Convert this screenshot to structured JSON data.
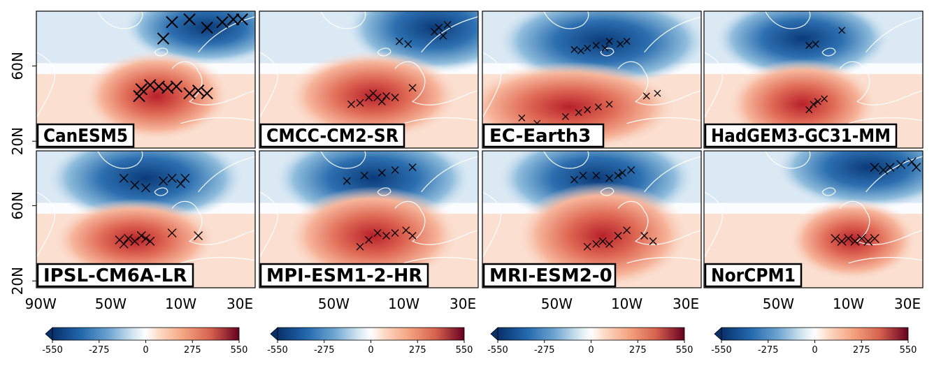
{
  "panels": [
    {
      "label": "CanESM5",
      "marker_scale": 1.6
    },
    {
      "label": "CMCC-CM2-SR",
      "marker_scale": 1.0
    },
    {
      "label": "EC-Earth3",
      "marker_scale": 0.9
    },
    {
      "label": "HadGEM3-GC31-MM",
      "marker_scale": 0.9
    },
    {
      "label": "IPSL-CM6A-LR",
      "marker_scale": 1.2
    },
    {
      "label": "MPI-ESM1-2-HR",
      "marker_scale": 1.0
    },
    {
      "label": "MRI-ESM2-0",
      "marker_scale": 1.0
    },
    {
      "label": "NorCPM1",
      "marker_scale": 1.2
    }
  ],
  "axes": {
    "lat_ticks": [
      "20N",
      "60N"
    ],
    "lon_ticks_first": [
      "90W",
      "50W",
      "10W",
      "30E"
    ],
    "lon_ticks_other": [
      "50W",
      "10W",
      "30E"
    ]
  },
  "colorbar": {
    "ticks": [
      "-550",
      "-275",
      "0",
      "275",
      "550"
    ],
    "colors": {
      "deep_blue": "#08306b",
      "mid_blue": "#2c6fb0",
      "light_blue": "#c6dcee",
      "neutral": "#ffffff",
      "light_red": "#f8c6ad",
      "mid_red": "#e06a55",
      "deep_red": "#67000d"
    }
  }
}
